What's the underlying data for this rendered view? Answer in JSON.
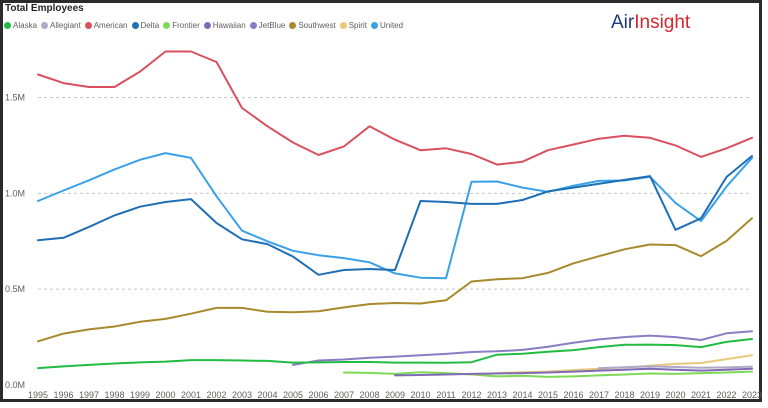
{
  "chart_data": {
    "type": "line",
    "title": "Total Employees",
    "xlabel": "",
    "ylabel": "",
    "legend_position": "top-left",
    "grid": true,
    "ylim": [
      0,
      1800000
    ],
    "y_ticks": [
      0,
      500000,
      1000000,
      1500000
    ],
    "y_tick_labels": [
      "0.0M",
      "0.5M",
      "1.0M",
      "1.5M"
    ],
    "x": [
      1995,
      1996,
      1997,
      1998,
      1999,
      2000,
      2001,
      2002,
      2003,
      2004,
      2005,
      2006,
      2007,
      2008,
      2009,
      2010,
      2011,
      2012,
      2013,
      2014,
      2015,
      2016,
      2017,
      2018,
      2019,
      2020,
      2021,
      2022,
      2023
    ],
    "x_tick_labels": [
      "1995",
      "1996",
      "1997",
      "1998",
      "1999",
      "2000",
      "2001",
      "2002",
      "2003",
      "2004",
      "2005",
      "2006",
      "2007",
      "2008",
      "2009",
      "2010",
      "2011",
      "2012",
      "2013",
      "2014",
      "2015",
      "2016",
      "2017",
      "2018",
      "2019",
      "2020",
      "2021",
      "2022",
      "2023"
    ],
    "series": [
      {
        "name": "Alaska",
        "color": "#22bb44",
        "values": [
          88000,
          97000,
          105000,
          112000,
          118000,
          122000,
          130000,
          130000,
          128000,
          126000,
          117000,
          118000,
          120000,
          120000,
          117000,
          117000,
          116000,
          119000,
          158000,
          163000,
          173000,
          182000,
          198000,
          210000,
          211000,
          208000,
          198000,
          225000,
          240000
        ]
      },
      {
        "name": "Allegiant",
        "color": "#b0a8c8",
        "values": [
          null,
          null,
          null,
          null,
          null,
          null,
          null,
          null,
          null,
          null,
          null,
          null,
          null,
          null,
          null,
          null,
          null,
          null,
          null,
          null,
          null,
          null,
          88000,
          93000,
          97000,
          94000,
          90000,
          92000,
          96000
        ]
      },
      {
        "name": "American",
        "color": "#d9505e",
        "values": [
          1620000,
          1575000,
          1555000,
          1555000,
          1635000,
          1740000,
          1740000,
          1685000,
          1445000,
          1350000,
          1265000,
          1200000,
          1245000,
          1350000,
          1280000,
          1225000,
          1235000,
          1205000,
          1150000,
          1165000,
          1225000,
          1255000,
          1285000,
          1300000,
          1290000,
          1250000,
          1190000,
          1235000,
          1290000
        ]
      },
      {
        "name": "Delta",
        "color": "#1f6fb5",
        "values": [
          755000,
          768000,
          825000,
          885000,
          930000,
          955000,
          970000,
          845000,
          760000,
          735000,
          670000,
          575000,
          600000,
          605000,
          600000,
          960000,
          955000,
          945000,
          945000,
          965000,
          1010000,
          1030000,
          1050000,
          1070000,
          1090000,
          810000,
          870000,
          1085000,
          1195000
        ]
      },
      {
        "name": "Frontier",
        "color": "#7ed957",
        "values": [
          null,
          null,
          null,
          null,
          null,
          null,
          null,
          null,
          null,
          null,
          null,
          null,
          65000,
          63000,
          58000,
          67000,
          62000,
          55000,
          45000,
          48000,
          42000,
          45000,
          50000,
          55000,
          60000,
          58000,
          62000,
          65000,
          70000
        ]
      },
      {
        "name": "Hawaiian",
        "color": "#7f6bb5",
        "values": [
          null,
          null,
          null,
          null,
          null,
          null,
          null,
          null,
          null,
          null,
          null,
          null,
          null,
          null,
          50000,
          52000,
          55000,
          58000,
          60000,
          62000,
          65000,
          70000,
          75000,
          80000,
          85000,
          80000,
          75000,
          80000,
          85000
        ]
      },
      {
        "name": "JetBlue",
        "color": "#8a7cc5",
        "values": [
          null,
          null,
          null,
          null,
          null,
          null,
          null,
          null,
          null,
          null,
          105000,
          128000,
          133000,
          142000,
          148000,
          155000,
          162000,
          172000,
          176000,
          183000,
          200000,
          220000,
          238000,
          250000,
          258000,
          250000,
          235000,
          270000,
          280000
        ]
      },
      {
        "name": "Southwest",
        "color": "#a88a2c",
        "values": [
          228000,
          268000,
          290000,
          305000,
          330000,
          345000,
          372000,
          402000,
          402000,
          382000,
          380000,
          385000,
          405000,
          422000,
          428000,
          425000,
          442000,
          540000,
          552000,
          557000,
          585000,
          635000,
          672000,
          708000,
          733000,
          730000,
          672000,
          752000,
          870000
        ]
      },
      {
        "name": "Spirit",
        "color": "#e8c97a",
        "values": [
          null,
          null,
          null,
          null,
          null,
          null,
          null,
          null,
          null,
          null,
          null,
          null,
          null,
          null,
          null,
          null,
          null,
          55000,
          62000,
          67000,
          70000,
          78000,
          85000,
          92000,
          100000,
          110000,
          115000,
          135000,
          155000
        ]
      },
      {
        "name": "United",
        "color": "#3aa0e8",
        "values": [
          960000,
          1015000,
          1068000,
          1125000,
          1175000,
          1210000,
          1185000,
          985000,
          805000,
          750000,
          700000,
          677000,
          662000,
          640000,
          582000,
          560000,
          557000,
          1060000,
          1062000,
          1030000,
          1008000,
          1040000,
          1065000,
          1067000,
          1087000,
          950000,
          855000,
          1035000,
          1185000
        ]
      }
    ]
  },
  "branding": {
    "logo_part1": "Air",
    "logo_part2": "Insight"
  }
}
